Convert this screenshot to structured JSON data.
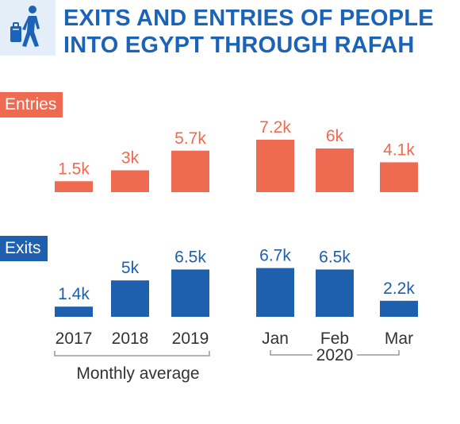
{
  "title_lines": [
    "EXITS AND ENTRIES OF PEOPLE",
    "INTO EGYPT THROUGH RAFAH"
  ],
  "icon": "traveler-with-luggage-icon",
  "colors": {
    "entries": "#ee6a50",
    "exits": "#1e5fae",
    "title": "#1c63b7",
    "icon_bg": "#e3eef8"
  },
  "chart_data": {
    "type": "bar",
    "categories": [
      "2017",
      "2018",
      "2019",
      "Jan",
      "Feb",
      "Mar"
    ],
    "groups": [
      {
        "label": "Monthly average",
        "categories": [
          "2017",
          "2018",
          "2019"
        ]
      },
      {
        "label": "2020",
        "categories": [
          "Jan",
          "Feb",
          "Mar"
        ]
      }
    ],
    "series": [
      {
        "name": "Entries",
        "values": [
          1500,
          3000,
          5700,
          7200,
          6000,
          4100
        ],
        "labels": [
          "1.5k",
          "3k",
          "5.7k",
          "7.2k",
          "6k",
          "4.1k"
        ]
      },
      {
        "name": "Exits",
        "values": [
          1400,
          5000,
          6500,
          6700,
          6500,
          2200
        ],
        "labels": [
          "1.4k",
          "5k",
          "6.5k",
          "6.7k",
          "6.5k",
          "2.2k"
        ]
      }
    ]
  }
}
